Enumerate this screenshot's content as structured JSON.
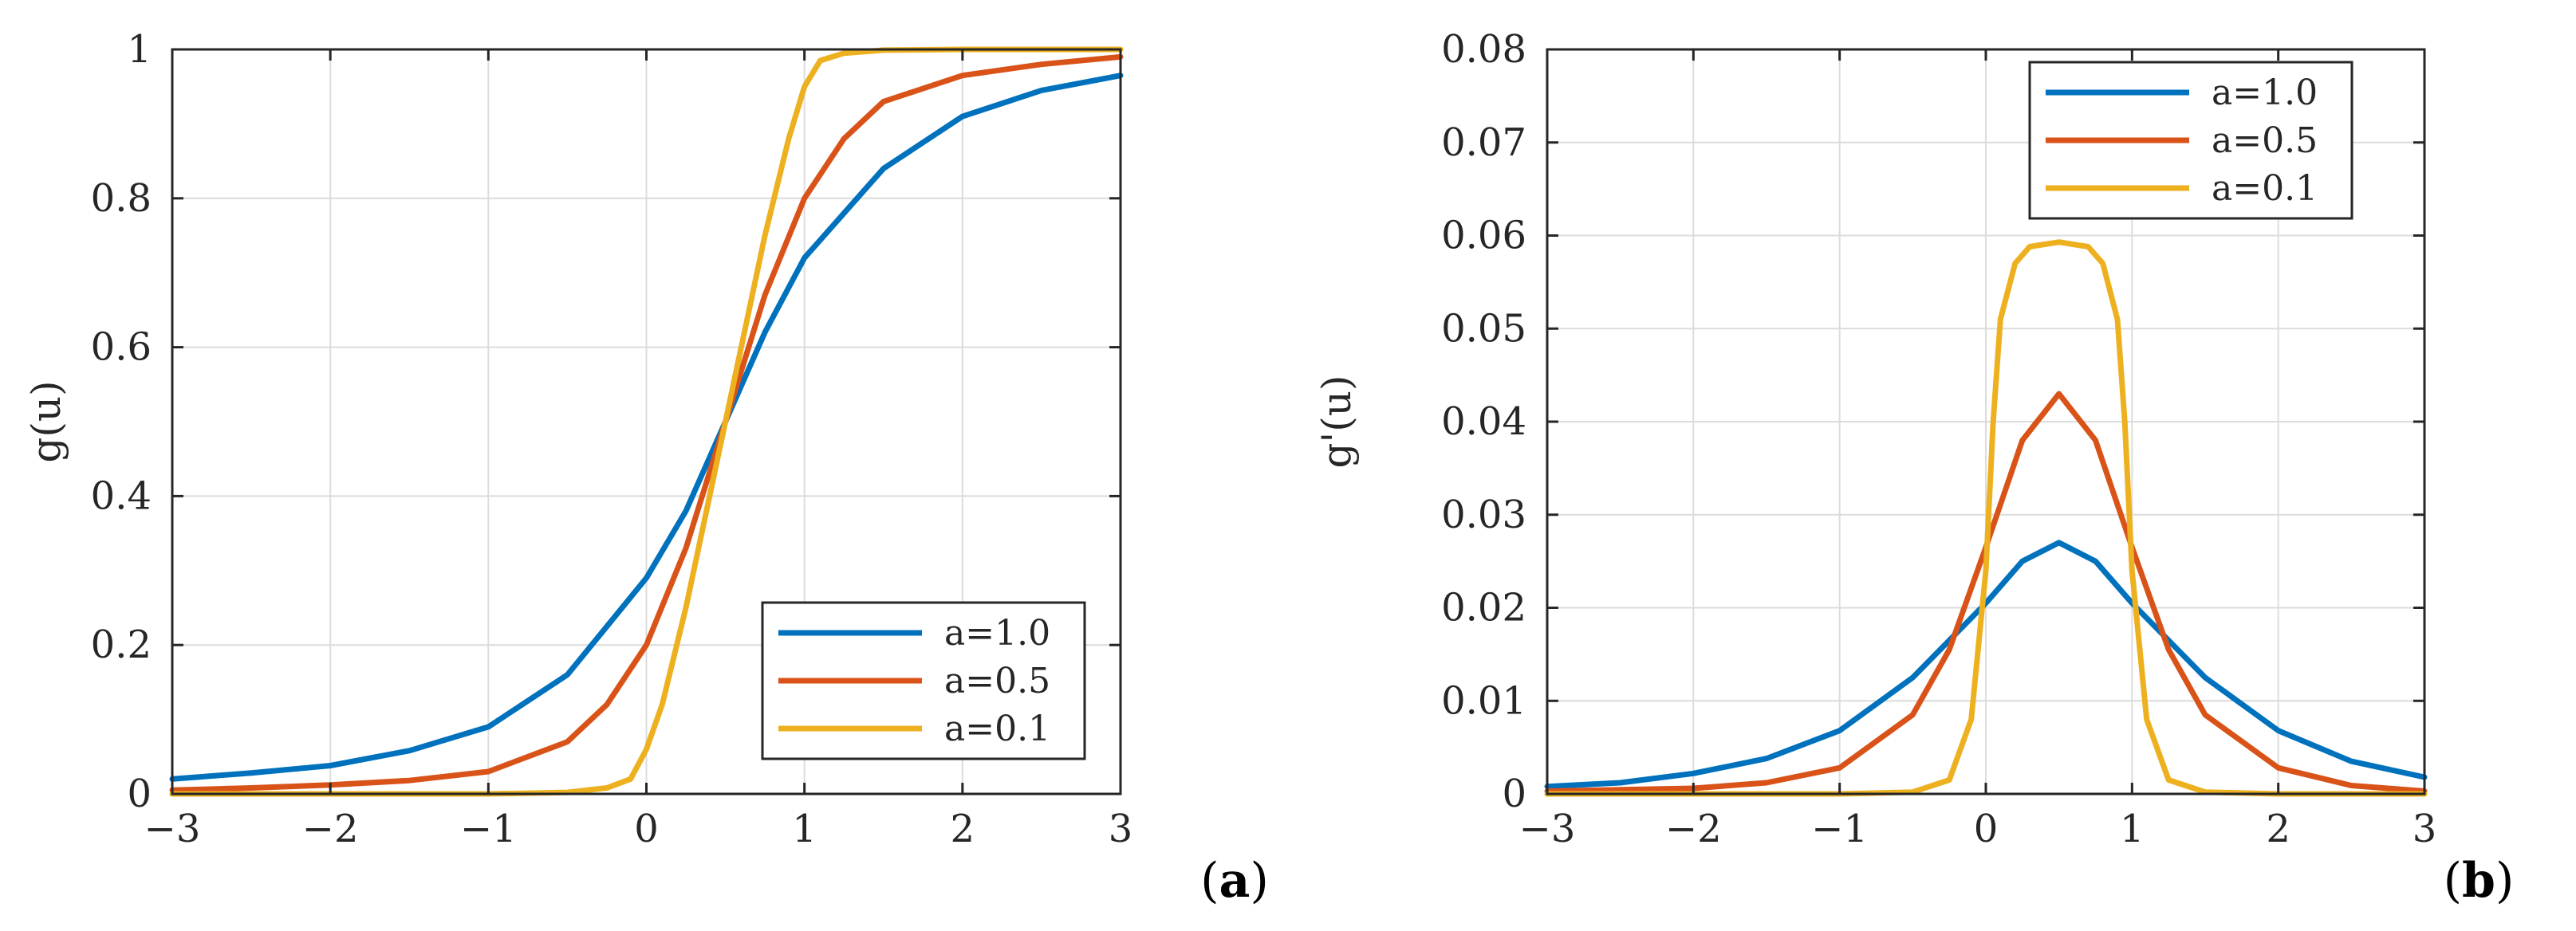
{
  "chart_data": [
    {
      "type": "line",
      "panel": "(a)",
      "panel_letter": "a",
      "ylabel": "g(u)",
      "xlabel": "",
      "xlim": [
        -3,
        3
      ],
      "ylim": [
        0,
        1
      ],
      "xticks": [
        -3,
        -2,
        -1,
        0,
        1,
        2,
        3
      ],
      "yticks": [
        0,
        0.2,
        0.4,
        0.6,
        0.8,
        1
      ],
      "xtick_labels": [
        "−3",
        "−2",
        "−1",
        "0",
        "1",
        "2",
        "3"
      ],
      "ytick_labels": [
        "0",
        "0.2",
        "0.4",
        "0.6",
        "0.8",
        "1"
      ],
      "grid": true,
      "legend_position": "bottom-right",
      "series": [
        {
          "name": "a=1.0",
          "color": "#0072BD",
          "x": [
            -3,
            -2.5,
            -2,
            -1.5,
            -1,
            -0.5,
            0,
            0.25,
            0.5,
            0.75,
            1,
            1.5,
            2,
            2.5,
            3
          ],
          "y": [
            0.02,
            0.028,
            0.038,
            0.058,
            0.09,
            0.16,
            0.29,
            0.38,
            0.5,
            0.62,
            0.72,
            0.84,
            0.91,
            0.945,
            0.965
          ]
        },
        {
          "name": "a=0.5",
          "color": "#D95319",
          "x": [
            -3,
            -2.5,
            -2,
            -1.5,
            -1,
            -0.5,
            -0.25,
            0,
            0.25,
            0.5,
            0.75,
            1,
            1.25,
            1.5,
            2,
            2.5,
            3
          ],
          "y": [
            0.005,
            0.008,
            0.012,
            0.018,
            0.03,
            0.07,
            0.12,
            0.2,
            0.33,
            0.5,
            0.67,
            0.8,
            0.88,
            0.93,
            0.965,
            0.98,
            0.99
          ]
        },
        {
          "name": "a=0.1",
          "color": "#EDB120",
          "x": [
            -3,
            -1,
            -0.5,
            -0.25,
            -0.1,
            0,
            0.1,
            0.25,
            0.5,
            0.75,
            0.9,
            1,
            1.1,
            1.25,
            1.5,
            2,
            3
          ],
          "y": [
            0,
            0,
            0.002,
            0.008,
            0.02,
            0.06,
            0.12,
            0.25,
            0.5,
            0.75,
            0.88,
            0.95,
            0.985,
            0.995,
            0.999,
            1,
            1
          ]
        }
      ]
    },
    {
      "type": "line",
      "panel": "(b)",
      "panel_letter": "b",
      "ylabel": "g'(u)",
      "xlabel": "",
      "xlim": [
        -3,
        3
      ],
      "ylim": [
        0,
        0.08
      ],
      "xticks": [
        -3,
        -2,
        -1,
        0,
        1,
        2,
        3
      ],
      "yticks": [
        0,
        0.01,
        0.02,
        0.03,
        0.04,
        0.05,
        0.06,
        0.07,
        0.08
      ],
      "xtick_labels": [
        "−3",
        "−2",
        "−1",
        "0",
        "1",
        "2",
        "3"
      ],
      "ytick_labels": [
        "0",
        "0.01",
        "0.02",
        "0.03",
        "0.04",
        "0.05",
        "0.06",
        "0.07",
        "0.08"
      ],
      "grid": true,
      "legend_position": "top-right",
      "series": [
        {
          "name": "a=1.0",
          "color": "#0072BD",
          "x": [
            -3,
            -2.5,
            -2,
            -1.5,
            -1,
            -0.5,
            0,
            0.25,
            0.5,
            0.75,
            1,
            1.5,
            2,
            2.5,
            3
          ],
          "y": [
            0.0008,
            0.0012,
            0.0022,
            0.0038,
            0.0068,
            0.0125,
            0.0205,
            0.025,
            0.027,
            0.025,
            0.0205,
            0.0125,
            0.0068,
            0.0035,
            0.0018
          ]
        },
        {
          "name": "a=0.5",
          "color": "#D95319",
          "x": [
            -3,
            -2,
            -1.5,
            -1,
            -0.5,
            -0.25,
            0,
            0.25,
            0.5,
            0.75,
            1,
            1.25,
            1.5,
            2,
            2.5,
            3
          ],
          "y": [
            0.0003,
            0.0006,
            0.0012,
            0.0028,
            0.0085,
            0.0155,
            0.0265,
            0.038,
            0.043,
            0.038,
            0.0265,
            0.0155,
            0.0085,
            0.0028,
            0.0009,
            0.0003
          ]
        },
        {
          "name": "a=0.1",
          "color": "#EDB120",
          "x": [
            -3,
            -1,
            -0.5,
            -0.25,
            -0.1,
            0,
            0.05,
            0.1,
            0.2,
            0.3,
            0.5,
            0.7,
            0.8,
            0.9,
            0.95,
            1,
            1.1,
            1.25,
            1.5,
            2,
            3
          ],
          "y": [
            0,
            0,
            0.0002,
            0.0015,
            0.008,
            0.024,
            0.04,
            0.051,
            0.057,
            0.0588,
            0.0593,
            0.0588,
            0.057,
            0.051,
            0.04,
            0.024,
            0.008,
            0.0015,
            0.0002,
            0,
            0
          ]
        }
      ]
    }
  ]
}
